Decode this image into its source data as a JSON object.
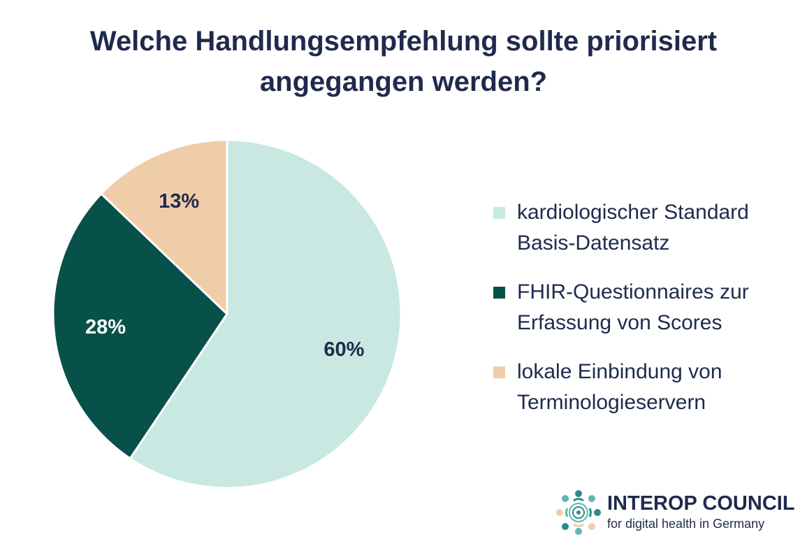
{
  "chart_data": {
    "type": "pie",
    "title_lines": [
      "Welche Handlungsempfehlung sollte priorisiert",
      "angegangen werden?"
    ],
    "legend_position": "right",
    "start": "top (12 o'clock), clockwise",
    "slices": [
      {
        "label_lines": [
          "kardiologischer Standard",
          "Basis-Datensatz"
        ],
        "value": 60,
        "value_label": "60%",
        "color": "#c8e8e1",
        "label_color": "#1f2a4d"
      },
      {
        "label_lines": [
          "FHIR-Questionnaires zur",
          "Erfassung von Scores"
        ],
        "value": 28,
        "value_label": "28%",
        "color": "#07514a",
        "label_color": "#ffffff"
      },
      {
        "label_lines": [
          "lokale Einbindung von",
          "Terminologieservern"
        ],
        "value": 13,
        "value_label": "13%",
        "color": "#f0cda9",
        "label_color": "#1f2a4d"
      }
    ]
  },
  "logo": {
    "name": "INTEROP COUNCIL",
    "tagline": "for digital health in Germany",
    "icon": "people-circle-icon",
    "colors": [
      "#2a8c8c",
      "#5cb8b2",
      "#f0cda9",
      "#1f2a4d"
    ]
  }
}
